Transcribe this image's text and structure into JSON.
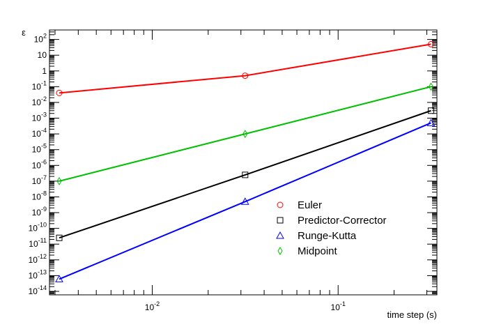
{
  "chart_data": {
    "type": "scatter",
    "title": "",
    "xlabel": "time step (s)",
    "ylabel": "ε",
    "xscale": "log",
    "yscale": "log",
    "xlim": [
      0.0028,
      0.34
    ],
    "ylim": [
      6e-15,
      400
    ],
    "grid": false,
    "legend": "lower-right",
    "xticks": [
      {
        "label": "10",
        "exp": "-2",
        "value": 0.01
      },
      {
        "label": "10",
        "exp": "-1",
        "value": 0.1
      }
    ],
    "yticks": [
      {
        "label": "10",
        "exp": "2",
        "value": 100
      },
      {
        "label": "10",
        "exp": "",
        "value": 10
      },
      {
        "label": "1",
        "exp": "",
        "value": 1
      },
      {
        "label": "10",
        "exp": "-1",
        "value": 0.1
      },
      {
        "label": "10",
        "exp": "-2",
        "value": 0.01
      },
      {
        "label": "10",
        "exp": "-3",
        "value": 0.001
      },
      {
        "label": "10",
        "exp": "-4",
        "value": 0.0001
      },
      {
        "label": "10",
        "exp": "-5",
        "value": 1e-05
      },
      {
        "label": "10",
        "exp": "-6",
        "value": 1e-06
      },
      {
        "label": "10",
        "exp": "-7",
        "value": 1e-07
      },
      {
        "label": "10",
        "exp": "-8",
        "value": 1e-08
      },
      {
        "label": "10",
        "exp": "-9",
        "value": 1e-09
      },
      {
        "label": "10",
        "exp": "-10",
        "value": 1e-10
      },
      {
        "label": "10",
        "exp": "-11",
        "value": 1e-11
      },
      {
        "label": "10",
        "exp": "-12",
        "value": 1e-12
      },
      {
        "label": "10",
        "exp": "-13",
        "value": 1e-13
      },
      {
        "label": "10",
        "exp": "-14",
        "value": 1e-14
      }
    ],
    "series": [
      {
        "name": "Euler",
        "marker": "circle",
        "color": "#ff0000",
        "x": [
          0.00316,
          0.0316,
          0.316
        ],
        "y": [
          0.04,
          0.5,
          50
        ]
      },
      {
        "name": "Predictor-Corrector",
        "marker": "square",
        "color": "#000000",
        "x": [
          0.00316,
          0.0316,
          0.316
        ],
        "y": [
          2.5e-11,
          2.5e-07,
          0.003
        ]
      },
      {
        "name": "Runge-Kutta",
        "marker": "triangle",
        "color": "#0000ff",
        "x": [
          0.00316,
          0.0316,
          0.316
        ],
        "y": [
          6e-14,
          5e-09,
          0.0005
        ]
      },
      {
        "name": "Midpoint",
        "marker": "diamond",
        "color": "#00c000",
        "x": [
          0.00316,
          0.0316,
          0.316
        ],
        "y": [
          1e-07,
          0.0001,
          0.1
        ]
      }
    ]
  }
}
